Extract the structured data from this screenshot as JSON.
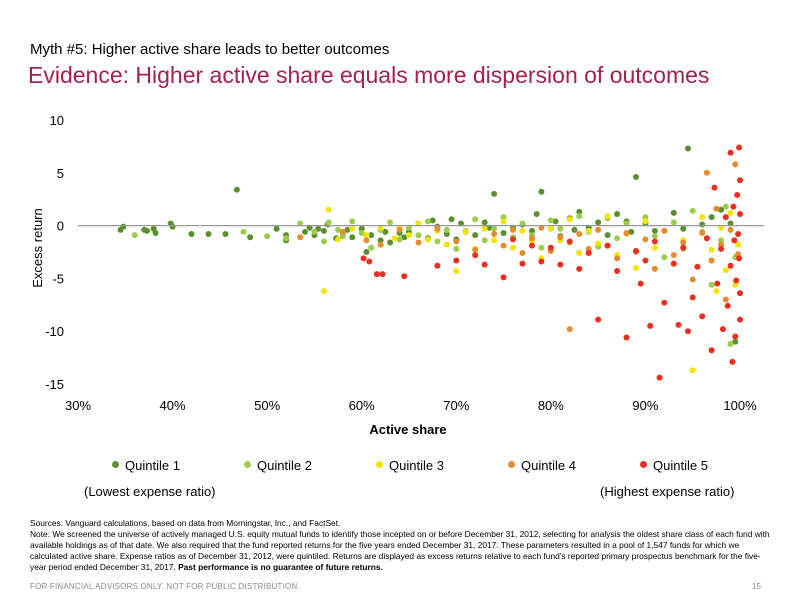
{
  "header": {
    "myth": "Myth #5: Higher active share leads to better outcomes",
    "title": "Evidence: Higher active share equals more dispersion of outcomes"
  },
  "chart_data": {
    "type": "scatter",
    "xlabel": "Active share",
    "ylabel": "Excess return",
    "x_ticks": [
      "30%",
      "40%",
      "50%",
      "60%",
      "70%",
      "80%",
      "90%",
      "100%"
    ],
    "y_ticks": [
      "10",
      "5",
      "0",
      "-5",
      "-10",
      "-15"
    ],
    "xlim": [
      30,
      100
    ],
    "ylim": [
      -15,
      10
    ],
    "grid": false,
    "legend_position": "bottom",
    "series": [
      {
        "name": "Quintile 1",
        "color": "#5a8f2e",
        "points": [
          [
            34.5,
            -0.4
          ],
          [
            34.8,
            -0.1
          ],
          [
            37,
            -0.4
          ],
          [
            37.3,
            -0.5
          ],
          [
            38,
            -0.3
          ],
          [
            38.2,
            -0.7
          ],
          [
            39.8,
            0.2
          ],
          [
            40,
            -0.1
          ],
          [
            42,
            -0.8
          ],
          [
            43.8,
            -0.8
          ],
          [
            45.6,
            -0.8
          ],
          [
            46.8,
            3.4
          ],
          [
            48.2,
            -1.1
          ],
          [
            51,
            -0.3
          ],
          [
            52,
            -0.9
          ],
          [
            52,
            -1.4
          ],
          [
            54,
            -0.6
          ],
          [
            54.5,
            -0.2
          ],
          [
            55,
            -0.9
          ],
          [
            55.4,
            -0.3
          ],
          [
            56,
            -0.5
          ],
          [
            56.4,
            0.1
          ],
          [
            57.3,
            -1.2
          ],
          [
            58,
            -0.7
          ],
          [
            58.5,
            -0.4
          ],
          [
            59,
            -1.1
          ],
          [
            60,
            -0.3
          ],
          [
            60.5,
            -2.5
          ],
          [
            61,
            -0.9
          ],
          [
            62,
            -1.4
          ],
          [
            62.5,
            -0.6
          ],
          [
            63,
            -1.6
          ],
          [
            64,
            -0.7
          ],
          [
            64.5,
            -1.1
          ],
          [
            65,
            -0.6
          ],
          [
            66,
            0.2
          ],
          [
            67,
            -1.2
          ],
          [
            67.5,
            0.5
          ],
          [
            68,
            -0.1
          ],
          [
            69,
            -0.8
          ],
          [
            69.5,
            0.6
          ],
          [
            70,
            -1.3
          ],
          [
            70.5,
            0.2
          ],
          [
            71,
            -0.6
          ],
          [
            72,
            -0.9
          ],
          [
            73,
            0.3
          ],
          [
            73.5,
            -0.2
          ],
          [
            74,
            3
          ],
          [
            75,
            -0.7
          ],
          [
            76,
            -0.2
          ],
          [
            77,
            0.1
          ],
          [
            78,
            -0.5
          ],
          [
            78.5,
            1.1
          ],
          [
            79,
            3.2
          ],
          [
            80,
            -0.3
          ],
          [
            80.5,
            0.4
          ],
          [
            81,
            -1
          ],
          [
            82,
            0.7
          ],
          [
            82.5,
            -0.4
          ],
          [
            83,
            1.3
          ],
          [
            84,
            -0.2
          ],
          [
            85,
            0.3
          ],
          [
            86,
            -0.9
          ],
          [
            87,
            1.1
          ],
          [
            88,
            0.4
          ],
          [
            88.5,
            -0.6
          ],
          [
            89,
            4.6
          ],
          [
            90,
            0.2
          ],
          [
            91,
            -0.5
          ],
          [
            93,
            1.2
          ],
          [
            94,
            -0.3
          ],
          [
            94.5,
            7.3
          ],
          [
            96,
            0.1
          ],
          [
            97,
            0.8
          ],
          [
            98,
            1.5
          ],
          [
            99,
            0.2
          ],
          [
            99.5,
            -11
          ]
        ]
      },
      {
        "name": "Quintile 2",
        "color": "#9ccc4c",
        "points": [
          [
            36,
            -0.9
          ],
          [
            47.5,
            -0.6
          ],
          [
            50,
            -1
          ],
          [
            52,
            -1.2
          ],
          [
            53.5,
            0.2
          ],
          [
            55,
            -0.6
          ],
          [
            56,
            -1.5
          ],
          [
            56.5,
            0.3
          ],
          [
            57.5,
            -0.4
          ],
          [
            58,
            -1
          ],
          [
            59,
            0.4
          ],
          [
            60,
            -0.7
          ],
          [
            61,
            -2.1
          ],
          [
            62,
            -0.4
          ],
          [
            63,
            0.3
          ],
          [
            64,
            -1.3
          ],
          [
            65,
            -0.2
          ],
          [
            66,
            -0.9
          ],
          [
            67,
            0.4
          ],
          [
            68,
            -1.5
          ],
          [
            69,
            -0.4
          ],
          [
            70,
            -2.2
          ],
          [
            71,
            -0.5
          ],
          [
            72,
            0.6
          ],
          [
            73,
            -1.4
          ],
          [
            74,
            -0.3
          ],
          [
            75,
            0.8
          ],
          [
            76,
            -1.1
          ],
          [
            77,
            0.2
          ],
          [
            78,
            -0.9
          ],
          [
            79,
            -2.1
          ],
          [
            80,
            0.5
          ],
          [
            81,
            -0.3
          ],
          [
            82,
            -1.6
          ],
          [
            83,
            0.9
          ],
          [
            84,
            -0.6
          ],
          [
            85,
            -2
          ],
          [
            86,
            0.7
          ],
          [
            87,
            -1.2
          ],
          [
            88,
            0.2
          ],
          [
            89,
            -2.5
          ],
          [
            90,
            0.8
          ],
          [
            91,
            -1
          ],
          [
            92,
            -3
          ],
          [
            93,
            0.3
          ],
          [
            94,
            -2.2
          ],
          [
            95,
            1.4
          ],
          [
            96,
            -0.6
          ],
          [
            97,
            -5.6
          ],
          [
            98,
            -1.4
          ],
          [
            98.5,
            1.8
          ],
          [
            99,
            -11.2
          ],
          [
            99.5,
            -3
          ]
        ]
      },
      {
        "name": "Quintile 3",
        "color": "#f5e400",
        "points": [
          [
            56,
            -6.2
          ],
          [
            56.5,
            1.5
          ],
          [
            57.5,
            -1.3
          ],
          [
            59,
            -0.3
          ],
          [
            60.5,
            -0.9
          ],
          [
            62,
            -0.2
          ],
          [
            63.5,
            -1.2
          ],
          [
            64,
            -0.2
          ],
          [
            65,
            -0.9
          ],
          [
            66,
            0.2
          ],
          [
            67,
            -1.3
          ],
          [
            68,
            -0.5
          ],
          [
            69,
            -1.8
          ],
          [
            70,
            -4.3
          ],
          [
            71,
            -0.6
          ],
          [
            72,
            -2.2
          ],
          [
            73,
            -0.3
          ],
          [
            74,
            -1.4
          ],
          [
            75,
            0.4
          ],
          [
            76,
            -2.1
          ],
          [
            77,
            -0.5
          ],
          [
            78,
            -1.5
          ],
          [
            79,
            -3.1
          ],
          [
            80,
            -0.3
          ],
          [
            81,
            -1.4
          ],
          [
            82,
            0.6
          ],
          [
            83,
            -2.6
          ],
          [
            84,
            -0.5
          ],
          [
            85,
            -1.7
          ],
          [
            86,
            0.9
          ],
          [
            87,
            -2.8
          ],
          [
            88,
            -0.8
          ],
          [
            89,
            -4
          ],
          [
            90,
            0.4
          ],
          [
            91,
            -2.1
          ],
          [
            92,
            -0.5
          ],
          [
            93,
            -3.6
          ],
          [
            94,
            -1.4
          ],
          [
            95,
            -13.7
          ],
          [
            96,
            0.8
          ],
          [
            97,
            -2.3
          ],
          [
            97.5,
            -6.2
          ],
          [
            98,
            -0.2
          ],
          [
            98.5,
            -4.2
          ],
          [
            99,
            1.2
          ],
          [
            99.5,
            -5.6
          ],
          [
            99.8,
            -1.8
          ]
        ]
      },
      {
        "name": "Quintile 4",
        "color": "#e98a2e",
        "points": [
          [
            53.5,
            -1.1
          ],
          [
            58,
            -0.6
          ],
          [
            60.5,
            -1.4
          ],
          [
            62,
            -1.8
          ],
          [
            64,
            -0.4
          ],
          [
            66,
            -1.6
          ],
          [
            68,
            -0.3
          ],
          [
            70,
            -1.5
          ],
          [
            72,
            -2.3
          ],
          [
            74,
            -0.8
          ],
          [
            75,
            -1.9
          ],
          [
            76,
            -0.4
          ],
          [
            77,
            -2.6
          ],
          [
            78,
            -1.2
          ],
          [
            79,
            -0.2
          ],
          [
            80,
            -2.4
          ],
          [
            81,
            -1.1
          ],
          [
            82,
            -9.8
          ],
          [
            83,
            -0.8
          ],
          [
            84,
            -2.2
          ],
          [
            85,
            -0.4
          ],
          [
            86,
            -1.9
          ],
          [
            87,
            -3.1
          ],
          [
            88,
            -0.7
          ],
          [
            89,
            -2.4
          ],
          [
            90,
            -1.3
          ],
          [
            91,
            -4.1
          ],
          [
            92,
            -0.5
          ],
          [
            93,
            -2.8
          ],
          [
            94,
            -1.6
          ],
          [
            95,
            -5.1
          ],
          [
            96,
            -0.7
          ],
          [
            96.5,
            5
          ],
          [
            97,
            -3.3
          ],
          [
            97.5,
            1.6
          ],
          [
            98,
            -1.8
          ],
          [
            98.5,
            -7
          ],
          [
            99,
            -0.4
          ],
          [
            99.5,
            5.8
          ],
          [
            99.8,
            -2.7
          ]
        ]
      },
      {
        "name": "Quintile 5",
        "color": "#ee2f1f",
        "points": [
          [
            60.2,
            -3.1
          ],
          [
            60.8,
            -3.4
          ],
          [
            61.6,
            -4.6
          ],
          [
            62.2,
            -4.6
          ],
          [
            64.5,
            -4.8
          ],
          [
            68,
            -3.8
          ],
          [
            70,
            -3.3
          ],
          [
            72,
            -2.8
          ],
          [
            73,
            -3.7
          ],
          [
            75,
            -4.9
          ],
          [
            76,
            -1.3
          ],
          [
            77,
            -3.6
          ],
          [
            78,
            -1.9
          ],
          [
            79,
            -3.4
          ],
          [
            80,
            -2.1
          ],
          [
            81,
            -3.7
          ],
          [
            82,
            -1.5
          ],
          [
            83,
            -4.1
          ],
          [
            84,
            -2.6
          ],
          [
            85,
            -8.9
          ],
          [
            86,
            -1.9
          ],
          [
            87,
            -4.3
          ],
          [
            88,
            -10.6
          ],
          [
            89,
            -2.4
          ],
          [
            89.5,
            -5.5
          ],
          [
            90,
            -3.3
          ],
          [
            90.5,
            -9.5
          ],
          [
            91,
            -1.5
          ],
          [
            91.5,
            -14.4
          ],
          [
            92,
            -7.3
          ],
          [
            93,
            -3.6
          ],
          [
            93.5,
            -9.4
          ],
          [
            94,
            -2.1
          ],
          [
            94.5,
            -10
          ],
          [
            95,
            -6.8
          ],
          [
            95.5,
            -3.9
          ],
          [
            96,
            -8.6
          ],
          [
            96.5,
            -1.2
          ],
          [
            97,
            -11.8
          ],
          [
            97.3,
            3.6
          ],
          [
            97.6,
            -5.5
          ],
          [
            98,
            -2.2
          ],
          [
            98.2,
            -9.8
          ],
          [
            98.5,
            0.8
          ],
          [
            98.7,
            -7.6
          ],
          [
            99,
            6.9
          ],
          [
            99,
            -3.8
          ],
          [
            99.2,
            -12.9
          ],
          [
            99.3,
            1.8
          ],
          [
            99.4,
            -1.4
          ],
          [
            99.5,
            -10.5
          ],
          [
            99.6,
            -5.2
          ],
          [
            99.7,
            2.9
          ],
          [
            99.8,
            -0.8
          ],
          [
            99.9,
            7.4
          ],
          [
            99.9,
            -3.1
          ],
          [
            100,
            -6.4
          ],
          [
            100,
            1.1
          ],
          [
            100,
            -8.9
          ],
          [
            100,
            4.3
          ]
        ]
      }
    ]
  },
  "legend": {
    "items": [
      {
        "label": "Quintile 1",
        "color": "#5a8f2e"
      },
      {
        "label": "Quintile 2",
        "color": "#9ccc4c"
      },
      {
        "label": "Quintile 3",
        "color": "#f5e400"
      },
      {
        "label": "Quintile 4",
        "color": "#e98a2e"
      },
      {
        "label": "Quintile 5",
        "color": "#ee2f1f"
      }
    ],
    "left_note": "(Lowest expense ratio)",
    "right_note": "(Highest expense ratio)"
  },
  "sources": {
    "line1": "Sources: Vanguard calculations, based on data from Morningstar, Inc., and FactSet.",
    "note": "Note: We screened the universe of actively managed U.S. equity mutual funds to identify those incepted on or before December 31, 2012, selecting for analysis the oldest share class of each fund with available holdings as of that date. We also required that the fund reported returns for the five years ended December 31, 2017. These parameters resulted in a pool of 1,547 funds for which we calculated active share. Expense ratios as of December 31, 2012, were quintiled. Returns are displayed as excess returns relative to each fund's reported primary prospectus benchmark for the five-year period ended December 31, 2017.",
    "bold": "Past performance is no guarantee of future returns."
  },
  "footer": {
    "disclaimer": "FOR FINANCIAL ADVISORS ONLY. NOT FOR PUBLIC DISTRIBUTION.",
    "page": "15"
  }
}
